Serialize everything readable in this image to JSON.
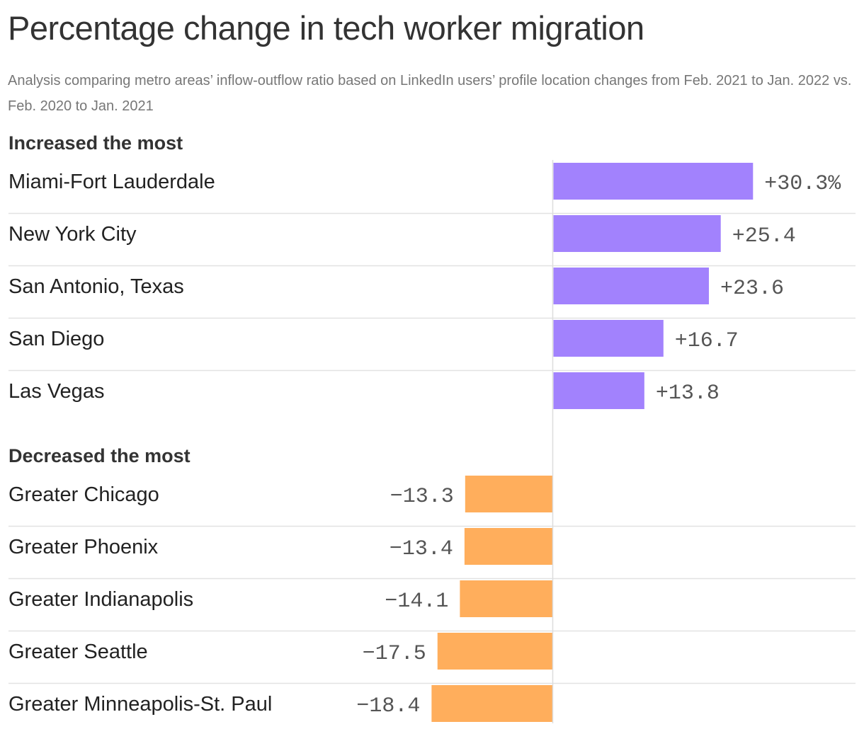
{
  "chart_data": {
    "type": "bar",
    "title": "Percentage change in tech worker migration",
    "subtitle": "Analysis comparing metro areas’ inflow-outflow ratio based on LinkedIn users’ profile location changes from Feb. 2021 to Jan. 2022 vs. Feb. 2020 to Jan. 2021",
    "groups": [
      {
        "name": "Increased the most",
        "color": "#a282fd",
        "categories": [
          "Miami-Fort Lauderdale",
          "New York City",
          "San Antonio, Texas",
          "San Diego",
          "Las Vegas"
        ],
        "values": [
          30.3,
          25.4,
          23.6,
          16.7,
          13.8
        ],
        "labels": [
          "+30.3%",
          "+25.4",
          "+23.6",
          "+16.7",
          "+13.8"
        ]
      },
      {
        "name": "Decreased the most",
        "color": "#ffae5c",
        "categories": [
          "Greater Chicago",
          "Greater Phoenix",
          "Greater Indianapolis",
          "Greater Seattle",
          "Greater Minneapolis-St. Paul"
        ],
        "values": [
          -13.3,
          -13.4,
          -14.1,
          -17.5,
          -18.4
        ],
        "labels": [
          "−13.3",
          "−13.4",
          "−14.1",
          "−17.5",
          "−18.4"
        ]
      }
    ],
    "grid": false
  }
}
